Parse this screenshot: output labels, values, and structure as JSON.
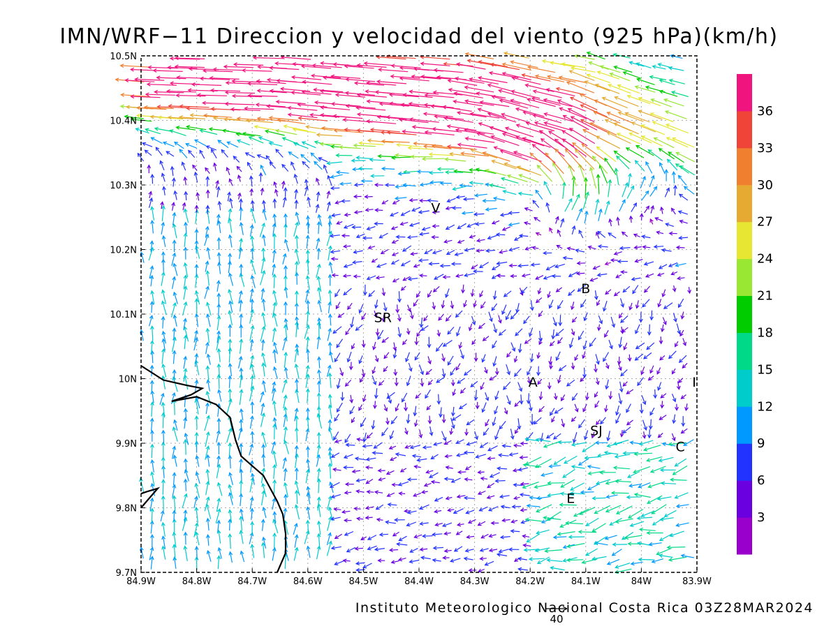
{
  "title": "IMN/WRF−11 Direccion y velocidad del viento (925 hPa)(km/h)",
  "footer": "Instituto Meteorologico Nacional Costa Rica 03Z28MAR2024",
  "reference_vector": {
    "label": "40",
    "speed": 40
  },
  "axes": {
    "x_ticks": [
      "84.9W",
      "84.8W",
      "84.7W",
      "84.6W",
      "84.5W",
      "84.4W",
      "84.3W",
      "84.2W",
      "84.1W",
      "84W",
      "83.9W"
    ],
    "y_ticks": [
      "10.5N",
      "10.4N",
      "10.3N",
      "10.2N",
      "10.1N",
      "10N",
      "9.9N",
      "9.8N",
      "9.7N"
    ],
    "lon_range": [
      -84.9,
      -83.9
    ],
    "lat_range": [
      9.7,
      10.5
    ],
    "grid": true
  },
  "cities": [
    {
      "label": "V",
      "lon": -84.37,
      "lat": 10.265
    },
    {
      "label": "B",
      "lon": -84.1,
      "lat": 10.14
    },
    {
      "label": "SR",
      "lon": -84.465,
      "lat": 10.095
    },
    {
      "label": "A",
      "lon": -84.195,
      "lat": 9.995
    },
    {
      "label": "I",
      "lon": -83.905,
      "lat": 9.995
    },
    {
      "label": "SJ",
      "lon": -84.081,
      "lat": 9.92
    },
    {
      "label": "C",
      "lon": -83.93,
      "lat": 9.895
    },
    {
      "label": "E",
      "lon": -84.127,
      "lat": 9.815
    }
  ],
  "colorbar": {
    "labels": [
      "3",
      "6",
      "9",
      "12",
      "15",
      "18",
      "21",
      "24",
      "27",
      "30",
      "33",
      "36"
    ],
    "colors": [
      "#9900cc",
      "#6a00e0",
      "#2233ff",
      "#0099ff",
      "#00cccc",
      "#00d987",
      "#00cc00",
      "#99e633",
      "#e6e633",
      "#e6aa33",
      "#f08030",
      "#f04438",
      "#f0147f"
    ]
  },
  "coastline": [
    [
      [
        -84.9,
        10.02
      ],
      [
        -84.86,
        9.998
      ],
      [
        -84.82,
        9.99
      ],
      [
        -84.79,
        9.985
      ],
      [
        -84.81,
        9.975
      ],
      [
        -84.845,
        9.965
      ],
      [
        -84.8,
        9.972
      ],
      [
        -84.765,
        9.96
      ],
      [
        -84.74,
        9.94
      ],
      [
        -84.73,
        9.905
      ],
      [
        -84.72,
        9.88
      ],
      [
        -84.7,
        9.865
      ],
      [
        -84.68,
        9.85
      ],
      [
        -84.655,
        9.81
      ],
      [
        -84.645,
        9.79
      ],
      [
        -84.64,
        9.76
      ],
      [
        -84.64,
        9.73
      ],
      [
        -84.65,
        9.71
      ],
      [
        -84.655,
        9.7
      ]
    ],
    [
      [
        -84.9,
        9.8
      ],
      [
        -84.885,
        9.815
      ],
      [
        -84.87,
        9.83
      ],
      [
        -84.89,
        9.825
      ],
      [
        -84.9,
        9.822
      ]
    ]
  ],
  "wind_field": [
    {
      "name": "jet",
      "path": [
        [
          -84.85,
          10.498
        ],
        [
          -84.6,
          10.49
        ],
        [
          -84.3,
          10.47
        ],
        [
          -84.1,
          10.43
        ],
        [
          -84.0,
          10.39
        ],
        [
          -83.92,
          10.36
        ]
      ],
      "speed_profile": [
        24,
        26,
        29,
        31,
        29,
        27
      ],
      "width_deg": 0.1
    },
    {
      "name": "northern-branch",
      "path": [
        [
          -84.85,
          10.44
        ],
        [
          -84.65,
          10.435
        ],
        [
          -84.4,
          10.41
        ],
        [
          -84.25,
          10.39
        ],
        [
          -84.15,
          10.35
        ],
        [
          -84.1,
          10.3
        ]
      ],
      "speed_profile": [
        22,
        25,
        30,
        35,
        33,
        25
      ],
      "width_deg": 0.07
    },
    {
      "name": "east-inflow",
      "path": [
        [
          -83.95,
          10.3
        ],
        [
          -84.05,
          10.28
        ],
        [
          -84.12,
          10.27
        ]
      ],
      "speed_profile": [
        18,
        20,
        22
      ],
      "width_deg": 0.05
    }
  ]
}
